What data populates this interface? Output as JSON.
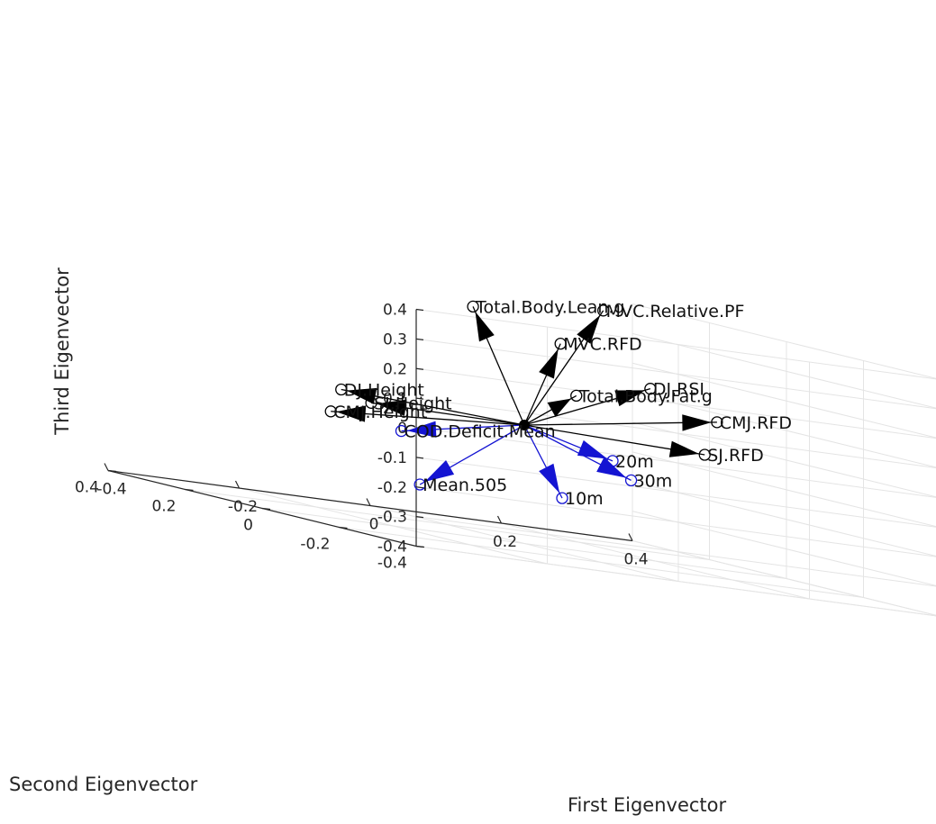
{
  "chart_data": {
    "type": "biplot-3d",
    "xlabel": "First Eigenvector",
    "ylabel": "Second Eigenvector",
    "zlabel": "Third Eigenvector",
    "xlim": [
      -0.4,
      0.4
    ],
    "ylim": [
      -0.4,
      0.4
    ],
    "zlim": [
      -0.4,
      0.4
    ],
    "x_ticks": [
      "-0.4",
      "-0.2",
      "0",
      "0.2",
      "0.4"
    ],
    "y_ticks": [
      "-0.4",
      "-0.2",
      "0",
      "0.2",
      "0.4"
    ],
    "z_ticks": [
      "-0.4",
      "-0.3",
      "-0.2",
      "-0.1",
      "0",
      "0.1",
      "0.2",
      "0.3",
      "0.4"
    ],
    "grid": true,
    "colors": {
      "positive_load": "#000000",
      "negative_load": "#1414d2"
    },
    "vectors": [
      {
        "label": "MVC.Relative.PF",
        "x": 0.05,
        "y": -0.12,
        "z": 0.44,
        "group": "positive_load"
      },
      {
        "label": "Total.Body.Lean.g",
        "x": -0.09,
        "y": -0.02,
        "z": 0.38,
        "group": "positive_load"
      },
      {
        "label": "MVC.RFD",
        "x": 0.02,
        "y": -0.06,
        "z": 0.3,
        "group": "positive_load"
      },
      {
        "label": "DJ.RSI",
        "x": 0.11,
        "y": -0.14,
        "z": 0.2,
        "group": "positive_load"
      },
      {
        "label": "Total.Body.Fat.g",
        "x": 0.05,
        "y": -0.05,
        "z": 0.13,
        "group": "positive_load"
      },
      {
        "label": "CMJ.RFD",
        "x": 0.2,
        "y": -0.16,
        "z": 0.12,
        "group": "positive_load"
      },
      {
        "label": "SJ.RFD",
        "x": 0.24,
        "y": -0.06,
        "z": -0.01,
        "group": "positive_load"
      },
      {
        "label": "DJ.Height",
        "x": -0.25,
        "y": 0.05,
        "z": 0.03,
        "group": "positive_load"
      },
      {
        "label": "SJ.Height",
        "x": -0.21,
        "y": 0.04,
        "z": 0.0,
        "group": "positive_load"
      },
      {
        "label": "CMJ.Height",
        "x": -0.26,
        "y": 0.06,
        "z": -0.05,
        "group": "positive_load"
      },
      {
        "label": "COD.Deficit.Mean",
        "x": -0.17,
        "y": 0.03,
        "z": -0.08,
        "group": "negative_load"
      },
      {
        "label": "20m",
        "x": 0.17,
        "y": 0.06,
        "z": -0.09,
        "group": "negative_load"
      },
      {
        "label": "30m",
        "x": 0.21,
        "y": 0.08,
        "z": -0.15,
        "group": "negative_load"
      },
      {
        "label": "10m",
        "x": 0.14,
        "y": 0.14,
        "z": -0.25,
        "group": "negative_load"
      },
      {
        "label": "Mean.505",
        "x": -0.03,
        "y": 0.22,
        "z": -0.28,
        "group": "negative_load"
      }
    ]
  }
}
